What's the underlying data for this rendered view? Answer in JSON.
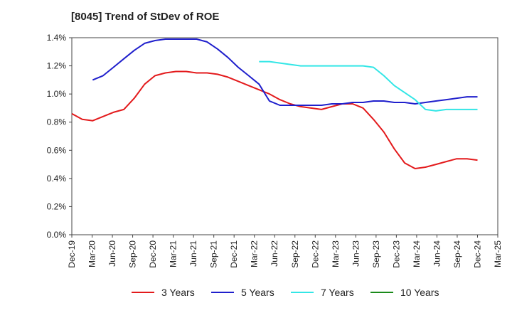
{
  "chart_data": {
    "type": "line",
    "title": "[8045]  Trend of StDev of ROE",
    "xlabel": "",
    "ylabel": "",
    "x_ticks": [
      "Dec-19",
      "Mar-20",
      "Jun-20",
      "Sep-20",
      "Dec-20",
      "Mar-21",
      "Jun-21",
      "Sep-21",
      "Dec-21",
      "Mar-22",
      "Jun-22",
      "Sep-22",
      "Dec-22",
      "Mar-23",
      "Jun-23",
      "Sep-23",
      "Dec-23",
      "Mar-24",
      "Jun-24",
      "Sep-24",
      "Dec-24",
      "Mar-25"
    ],
    "y_ticks": [
      "0.0%",
      "0.2%",
      "0.4%",
      "0.6%",
      "0.8%",
      "1.0%",
      "1.2%",
      "1.4%"
    ],
    "ylim": [
      0,
      1.4
    ],
    "grid": true,
    "legend_position": "bottom",
    "series": [
      {
        "name": "3 Years",
        "color": "#e31a1c",
        "values": [
          0.86,
          0.82,
          0.81,
          0.84,
          0.87,
          0.89,
          0.97,
          1.07,
          1.13,
          1.15,
          1.16,
          1.16,
          1.15,
          1.15,
          1.14,
          1.12,
          1.09,
          1.06,
          1.03,
          1.0,
          0.96,
          0.93,
          0.91,
          0.9,
          0.89,
          0.91,
          0.93,
          0.93,
          0.9,
          0.82,
          0.73,
          0.61,
          0.51,
          0.47,
          0.48,
          0.5,
          0.52,
          0.54,
          0.54,
          0.53
        ]
      },
      {
        "name": "5 Years",
        "color": "#1f1fcc",
        "values": [
          null,
          null,
          1.1,
          1.13,
          1.19,
          1.25,
          1.31,
          1.36,
          1.38,
          1.39,
          1.39,
          1.39,
          1.39,
          1.37,
          1.32,
          1.26,
          1.19,
          1.13,
          1.07,
          0.95,
          0.92,
          0.92,
          0.92,
          0.92,
          0.92,
          0.93,
          0.93,
          0.94,
          0.94,
          0.95,
          0.95,
          0.94,
          0.94,
          0.93,
          0.94,
          0.95,
          0.96,
          0.97,
          0.98,
          0.98
        ]
      },
      {
        "name": "7 Years",
        "color": "#33e6e6",
        "values": [
          null,
          null,
          null,
          null,
          null,
          null,
          null,
          null,
          null,
          null,
          null,
          null,
          null,
          null,
          null,
          null,
          null,
          null,
          1.23,
          1.23,
          1.22,
          1.21,
          1.2,
          1.2,
          1.2,
          1.2,
          1.2,
          1.2,
          1.2,
          1.19,
          1.13,
          1.06,
          1.01,
          0.96,
          0.89,
          0.88,
          0.89,
          0.89,
          0.89,
          0.89
        ]
      },
      {
        "name": "10 Years",
        "color": "#1a8a1a",
        "values": [
          null,
          null,
          null,
          null,
          null,
          null,
          null,
          null,
          null,
          null,
          null,
          null,
          null,
          null,
          null,
          null,
          null,
          null,
          null,
          null,
          null,
          null,
          null,
          null,
          null,
          null,
          null,
          null,
          null,
          null,
          null,
          null,
          null,
          null,
          null,
          null,
          null,
          null,
          null,
          null
        ]
      }
    ]
  }
}
